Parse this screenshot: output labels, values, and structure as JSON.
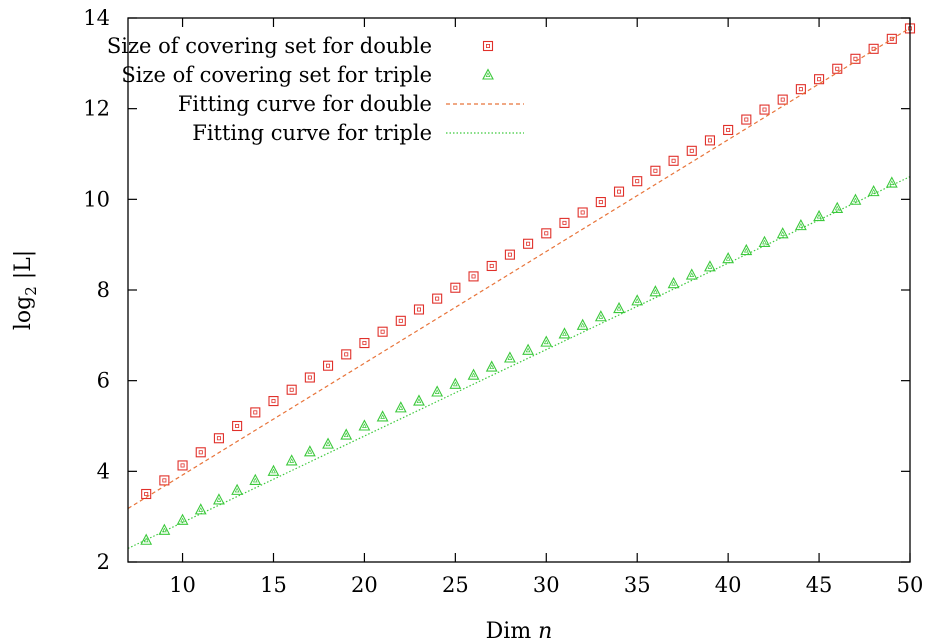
{
  "chart_data": {
    "type": "scatter",
    "title": "",
    "xlabel_prefix": "Dim ",
    "xlabel_var": "n",
    "ylabel_main": "log",
    "ylabel_sub": "2",
    "ylabel_rest": " |L|",
    "xlim": [
      7,
      50
    ],
    "ylim": [
      2,
      14
    ],
    "xticks": [
      10,
      15,
      20,
      25,
      30,
      35,
      40,
      45,
      50
    ],
    "yticks": [
      2,
      4,
      6,
      8,
      10,
      12,
      14
    ],
    "grid": false,
    "legend_position": "top-left",
    "series": [
      {
        "name": "Size of covering set for double",
        "kind": "points",
        "marker": "square",
        "color": "#e0302a",
        "x": [
          8,
          9,
          10,
          11,
          12,
          13,
          14,
          15,
          16,
          17,
          18,
          19,
          20,
          21,
          22,
          23,
          24,
          25,
          26,
          27,
          28,
          29,
          30,
          31,
          32,
          33,
          34,
          35,
          36,
          37,
          38,
          39,
          40,
          41,
          42,
          43,
          44,
          45,
          46,
          47,
          48,
          49,
          50
        ],
        "y": [
          3.5,
          3.8,
          4.13,
          4.42,
          4.73,
          5.0,
          5.3,
          5.55,
          5.8,
          6.07,
          6.33,
          6.58,
          6.83,
          7.08,
          7.32,
          7.57,
          7.81,
          8.05,
          8.3,
          8.53,
          8.78,
          9.02,
          9.25,
          9.48,
          9.71,
          9.94,
          10.17,
          10.4,
          10.63,
          10.85,
          11.07,
          11.3,
          11.53,
          11.76,
          11.98,
          12.2,
          12.43,
          12.65,
          12.88,
          13.1,
          13.32,
          13.54,
          13.77
        ]
      },
      {
        "name": "Size of covering set for triple",
        "kind": "points",
        "marker": "triangle",
        "color": "#3cc93c",
        "x": [
          8,
          9,
          10,
          11,
          12,
          13,
          14,
          15,
          16,
          17,
          18,
          19,
          20,
          21,
          22,
          23,
          24,
          25,
          26,
          27,
          28,
          29,
          30,
          31,
          32,
          33,
          34,
          35,
          36,
          37,
          38,
          39,
          40,
          41,
          42,
          43,
          44,
          45,
          46,
          47,
          48,
          49
        ],
        "y": [
          2.48,
          2.7,
          2.92,
          3.15,
          3.37,
          3.58,
          3.8,
          4.0,
          4.23,
          4.43,
          4.6,
          4.8,
          5.0,
          5.2,
          5.4,
          5.55,
          5.75,
          5.92,
          6.12,
          6.3,
          6.5,
          6.67,
          6.85,
          7.03,
          7.22,
          7.41,
          7.59,
          7.76,
          7.96,
          8.14,
          8.33,
          8.51,
          8.69,
          8.87,
          9.05,
          9.24,
          9.42,
          9.62,
          9.8,
          9.98,
          10.17,
          10.36
        ]
      },
      {
        "name": "Fitting curve for double",
        "kind": "line",
        "dash": "dashed",
        "color": "#e8743a",
        "x": [
          7,
          50
        ],
        "y": [
          3.18,
          13.78
        ]
      },
      {
        "name": "Fitting curve for triple",
        "kind": "line",
        "dash": "dotted",
        "color": "#3cc93c",
        "x": [
          7,
          50
        ],
        "y": [
          2.3,
          10.5
        ]
      }
    ]
  }
}
